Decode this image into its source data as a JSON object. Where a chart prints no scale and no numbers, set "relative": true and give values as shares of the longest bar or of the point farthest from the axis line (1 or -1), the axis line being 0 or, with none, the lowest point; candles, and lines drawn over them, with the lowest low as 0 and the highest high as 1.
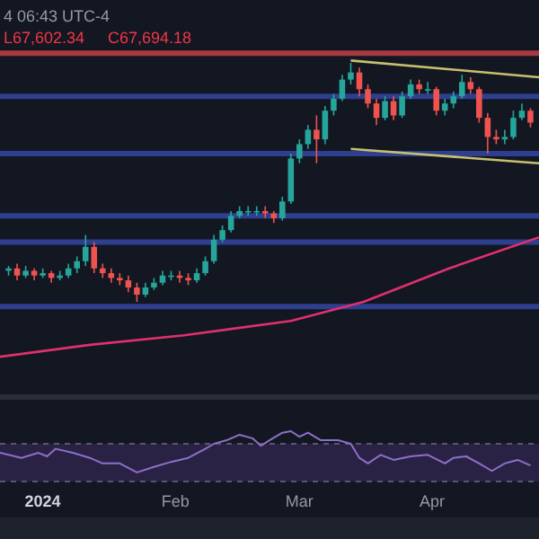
{
  "chart_data": [
    {
      "type": "candlestick",
      "relative": true,
      "tick_labels": false,
      "xlim": [
        "2023-12-22",
        "2024-04-26"
      ],
      "x": [
        "2023-12-24",
        "2023-12-26",
        "2023-12-28",
        "2023-12-30",
        "2024-01-01",
        "2024-01-03",
        "2024-01-05",
        "2024-01-07",
        "2024-01-09",
        "2024-01-11",
        "2024-01-13",
        "2024-01-15",
        "2024-01-17",
        "2024-01-19",
        "2024-01-21",
        "2024-01-23",
        "2024-01-25",
        "2024-01-27",
        "2024-01-29",
        "2024-01-31",
        "2024-02-02",
        "2024-02-04",
        "2024-02-06",
        "2024-02-08",
        "2024-02-10",
        "2024-02-12",
        "2024-02-14",
        "2024-02-16",
        "2024-02-18",
        "2024-02-20",
        "2024-02-22",
        "2024-02-24",
        "2024-02-26",
        "2024-02-28",
        "2024-03-01",
        "2024-03-03",
        "2024-03-05",
        "2024-03-07",
        "2024-03-09",
        "2024-03-11",
        "2024-03-13",
        "2024-03-15",
        "2024-03-17",
        "2024-03-19",
        "2024-03-21",
        "2024-03-23",
        "2024-03-25",
        "2024-03-27",
        "2024-03-29",
        "2024-03-31",
        "2024-04-02",
        "2024-04-04",
        "2024-04-06",
        "2024-04-08",
        "2024-04-10",
        "2024-04-12",
        "2024-04-14",
        "2024-04-16",
        "2024-04-18",
        "2024-04-20",
        "2024-04-22",
        "2024-04-24"
      ],
      "ohlc": [
        [
          0.13,
          0.15,
          0.11,
          0.14
        ],
        [
          0.14,
          0.16,
          0.09,
          0.11
        ],
        [
          0.11,
          0.15,
          0.1,
          0.13
        ],
        [
          0.13,
          0.14,
          0.09,
          0.11
        ],
        [
          0.11,
          0.14,
          0.1,
          0.12
        ],
        [
          0.12,
          0.13,
          0.08,
          0.1
        ],
        [
          0.1,
          0.13,
          0.09,
          0.11
        ],
        [
          0.11,
          0.16,
          0.1,
          0.14
        ],
        [
          0.14,
          0.19,
          0.12,
          0.17
        ],
        [
          0.17,
          0.28,
          0.15,
          0.23
        ],
        [
          0.23,
          0.25,
          0.12,
          0.14
        ],
        [
          0.14,
          0.16,
          0.1,
          0.12
        ],
        [
          0.12,
          0.14,
          0.08,
          0.1
        ],
        [
          0.1,
          0.12,
          0.07,
          0.09
        ],
        [
          0.09,
          0.11,
          0.04,
          0.06
        ],
        [
          0.06,
          0.08,
          0,
          0.03
        ],
        [
          0.03,
          0.08,
          0.02,
          0.06
        ],
        [
          0.06,
          0.1,
          0.05,
          0.08
        ],
        [
          0.08,
          0.13,
          0.07,
          0.11
        ],
        [
          0.11,
          0.13,
          0.09,
          0.11
        ],
        [
          0.11,
          0.13,
          0.08,
          0.1
        ],
        [
          0.1,
          0.12,
          0.07,
          0.09
        ],
        [
          0.09,
          0.14,
          0.08,
          0.12
        ],
        [
          0.12,
          0.19,
          0.11,
          0.17
        ],
        [
          0.17,
          0.28,
          0.16,
          0.26
        ],
        [
          0.26,
          0.32,
          0.25,
          0.3
        ],
        [
          0.3,
          0.38,
          0.29,
          0.36
        ],
        [
          0.36,
          0.4,
          0.35,
          0.38
        ],
        [
          0.38,
          0.4,
          0.36,
          0.38
        ],
        [
          0.38,
          0.4,
          0.36,
          0.38
        ],
        [
          0.38,
          0.4,
          0.35,
          0.37
        ],
        [
          0.37,
          0.38,
          0.33,
          0.35
        ],
        [
          0.35,
          0.44,
          0.34,
          0.42
        ],
        [
          0.42,
          0.62,
          0.41,
          0.6
        ],
        [
          0.6,
          0.68,
          0.58,
          0.66
        ],
        [
          0.66,
          0.74,
          0.64,
          0.72
        ],
        [
          0.72,
          0.78,
          0.58,
          0.68
        ],
        [
          0.68,
          0.82,
          0.66,
          0.8
        ],
        [
          0.8,
          0.87,
          0.78,
          0.85
        ],
        [
          0.85,
          0.95,
          0.84,
          0.93
        ],
        [
          0.93,
          1,
          0.91,
          0.96
        ],
        [
          0.96,
          0.98,
          0.86,
          0.89
        ],
        [
          0.89,
          0.91,
          0.81,
          0.83
        ],
        [
          0.83,
          0.85,
          0.74,
          0.77
        ],
        [
          0.77,
          0.86,
          0.76,
          0.84
        ],
        [
          0.84,
          0.86,
          0.76,
          0.78
        ],
        [
          0.78,
          0.88,
          0.77,
          0.86
        ],
        [
          0.86,
          0.93,
          0.85,
          0.91
        ],
        [
          0.91,
          0.93,
          0.87,
          0.89
        ],
        [
          0.89,
          0.92,
          0.87,
          0.89
        ],
        [
          0.89,
          0.9,
          0.78,
          0.8
        ],
        [
          0.8,
          0.85,
          0.78,
          0.83
        ],
        [
          0.83,
          0.88,
          0.81,
          0.86
        ],
        [
          0.86,
          0.95,
          0.85,
          0.92
        ],
        [
          0.92,
          0.94,
          0.87,
          0.89
        ],
        [
          0.89,
          0.9,
          0.75,
          0.77
        ],
        [
          0.77,
          0.79,
          0.62,
          0.69
        ],
        [
          0.69,
          0.72,
          0.66,
          0.68
        ],
        [
          0.68,
          0.72,
          0.66,
          0.69
        ],
        [
          0.69,
          0.8,
          0.68,
          0.77
        ],
        [
          0.77,
          0.83,
          0.76,
          0.8
        ],
        [
          0.8,
          0.81,
          0.73,
          0.75
        ]
      ],
      "series": [
        {
          "type": "line",
          "color": "#e0306e",
          "x": [
            "2023-12-22",
            "2024-01-12",
            "2024-02-03",
            "2024-02-28",
            "2024-03-16",
            "2024-04-05",
            "2024-04-26"
          ],
          "values": [
            -0.23,
            -0.18,
            -0.14,
            -0.08,
            0,
            0.14,
            0.27
          ]
        },
        {
          "type": "line",
          "color": "#c8c070",
          "x": [
            "2024-03-13",
            "2024-04-26"
          ],
          "values": [
            1.01,
            0.94
          ]
        },
        {
          "type": "line",
          "color": "#c8c070",
          "x": [
            "2024-03-13",
            "2024-04-26"
          ],
          "values": [
            0.64,
            0.58
          ]
        }
      ],
      "ref_lines": [
        {
          "axis": "y",
          "value": 1.04,
          "color": "#a63a40"
        },
        {
          "axis": "y",
          "value": 0.86,
          "color": "#2e3f8f"
        },
        {
          "axis": "y",
          "value": 0.62,
          "color": "#2e3f8f"
        },
        {
          "axis": "y",
          "value": 0.36,
          "color": "#2e3f8f"
        },
        {
          "axis": "y",
          "value": 0.25,
          "color": "#2e3f8f"
        },
        {
          "axis": "y",
          "value": -0.02,
          "color": "#2e3f8f"
        }
      ],
      "annotations": [
        "4 06:43 UTC-4",
        "L67,602.34",
        "C67,694.18"
      ]
    },
    {
      "type": "line",
      "relative": true,
      "tick_labels": "x",
      "xlim": [
        "2023-12-22",
        "2024-04-26"
      ],
      "xticks": [
        {
          "value": "2024-01-01",
          "label": "2024"
        },
        {
          "value": "2024-02-01",
          "label": "Feb"
        },
        {
          "value": "2024-03-01",
          "label": "Mar"
        },
        {
          "value": "2024-04-01",
          "label": "Apr"
        }
      ],
      "x": [
        "2023-12-22",
        "2023-12-27",
        "2023-12-31",
        "2024-01-02",
        "2024-01-04",
        "2024-01-08",
        "2024-01-12",
        "2024-01-15",
        "2024-01-19",
        "2024-01-23",
        "2024-01-27",
        "2024-01-31",
        "2024-02-04",
        "2024-02-08",
        "2024-02-10",
        "2024-02-13",
        "2024-02-16",
        "2024-02-19",
        "2024-02-21",
        "2024-02-23",
        "2024-02-26",
        "2024-02-28",
        "2024-03-01",
        "2024-03-03",
        "2024-03-06",
        "2024-03-10",
        "2024-03-13",
        "2024-03-15",
        "2024-03-17",
        "2024-03-20",
        "2024-03-23",
        "2024-03-27",
        "2024-03-31",
        "2024-04-04",
        "2024-04-06",
        "2024-04-09",
        "2024-04-12",
        "2024-04-15",
        "2024-04-18",
        "2024-04-21",
        "2024-04-24"
      ],
      "series": [
        {
          "color": "#8e6fc9",
          "values": [
            0.57,
            0.47,
            0.57,
            0.5,
            0.65,
            0.57,
            0.47,
            0.36,
            0.36,
            0.18,
            0.29,
            0.39,
            0.47,
            0.65,
            0.75,
            0.82,
            0.93,
            0.86,
            0.71,
            0.82,
            0.97,
            1,
            0.89,
            0.97,
            0.82,
            0.82,
            0.75,
            0.47,
            0.36,
            0.53,
            0.43,
            0.5,
            0.53,
            0.36,
            0.47,
            0.5,
            0.36,
            0.21,
            0.36,
            0.43,
            0.32
          ]
        }
      ],
      "bands": [
        {
          "axis": "y",
          "from": 0,
          "to": 0.75,
          "color": "#2a2245"
        }
      ],
      "ref_lines": [
        {
          "axis": "y",
          "value": 0.75,
          "color": "#6f6a80",
          "line_style": "dashed"
        },
        {
          "axis": "y",
          "value": 0,
          "color": "#6f6a80",
          "line_style": "dashed"
        }
      ]
    }
  ]
}
